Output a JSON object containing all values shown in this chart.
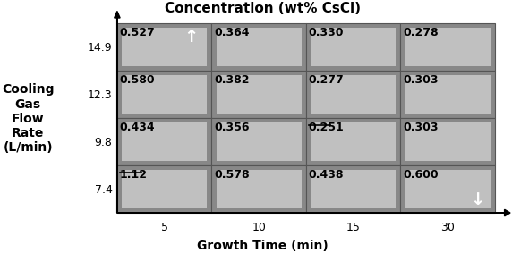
{
  "title": "Concentration (wt% CsCl)",
  "xlabel": "Growth Time (min)",
  "ylabel_lines": [
    "Cooling",
    "Gas",
    "Flow",
    "Rate",
    "(L/min)"
  ],
  "x_ticks": [
    5,
    10,
    15,
    30
  ],
  "y_ticks": [
    7.4,
    9.8,
    12.3,
    14.9
  ],
  "concentrations": [
    [
      "0.527",
      "0.364",
      "0.330",
      "0.278"
    ],
    [
      "0.580",
      "0.382",
      "0.277",
      "0.303"
    ],
    [
      "0.434",
      "0.356",
      "0.251",
      "0.303"
    ],
    [
      "1.12",
      "0.578",
      "0.438",
      "0.600"
    ]
  ],
  "arrow_up_cell": [
    0,
    0
  ],
  "arrow_down_cell": [
    3,
    3
  ],
  "underline_cells": [
    [
      3,
      0
    ],
    [
      2,
      2
    ]
  ],
  "bg_color": "#ffffff",
  "grid_color": "#555555",
  "cell_bg_dark": "#888888",
  "cell_bg_light": "#c0c0c0",
  "text_color": "#000000",
  "title_fontsize": 11,
  "label_fontsize": 10,
  "tick_fontsize": 9,
  "conc_fontsize": 9
}
